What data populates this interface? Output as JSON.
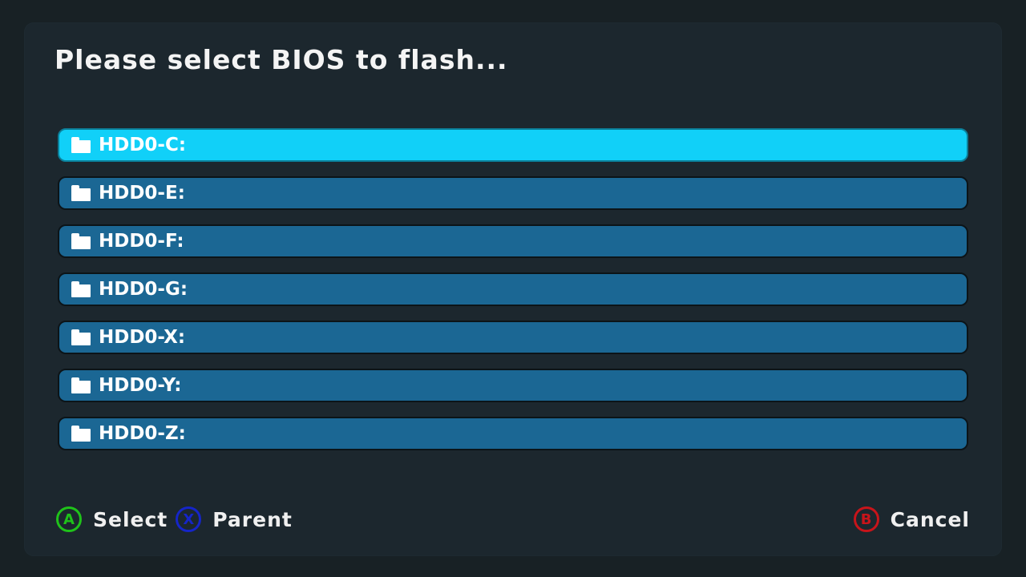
{
  "title": "Please select BIOS to flash...",
  "items": [
    {
      "label": "HDD0-C:",
      "selected": true
    },
    {
      "label": "HDD0-E:",
      "selected": false
    },
    {
      "label": "HDD0-F:",
      "selected": false
    },
    {
      "label": "HDD0-G:",
      "selected": false
    },
    {
      "label": "HDD0-X:",
      "selected": false
    },
    {
      "label": "HDD0-Y:",
      "selected": false
    },
    {
      "label": "HDD0-Z:",
      "selected": false
    }
  ],
  "footer": {
    "select": {
      "button": "A",
      "label": "Select",
      "color": "#1fc21a"
    },
    "parent": {
      "button": "X",
      "label": "Parent",
      "color": "#1525c8"
    },
    "cancel": {
      "button": "B",
      "label": "Cancel",
      "color": "#c8141a"
    }
  },
  "colors": {
    "background": "#182125",
    "panel": "#1c272e",
    "item": "#1b6794",
    "item_selected": "#11d0f8",
    "text": "#ffffff"
  },
  "icons": {
    "item_icon": "folder-icon"
  }
}
